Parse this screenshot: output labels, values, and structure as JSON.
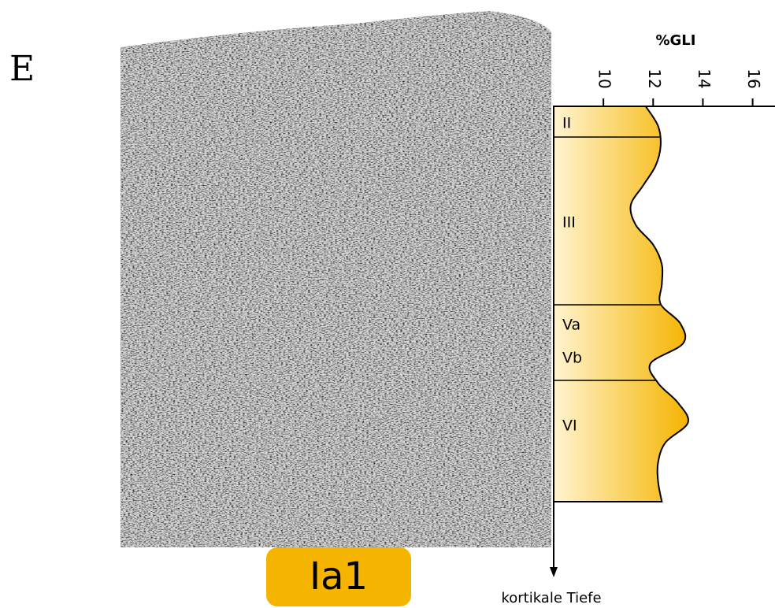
{
  "panel_label": "E",
  "chart_data": {
    "type": "area",
    "x_label": "%GLI",
    "y_label": "kortikale Tiefe",
    "categories": [
      null,
      null,
      null,
      null,
      null,
      null,
      null,
      null,
      null,
      null,
      null,
      null,
      null,
      null,
      null,
      null,
      null,
      null,
      null,
      null,
      null
    ],
    "values": [
      11.7,
      12.2,
      12.3,
      12.1,
      11.6,
      11.1,
      11.3,
      12.0,
      12.35,
      12.35,
      12.3,
      13.1,
      13.2,
      11.9,
      12.2,
      13.0,
      13.4,
      12.5,
      12.2,
      12.2,
      12.35
    ],
    "xlim": [
      8,
      16.9
    ],
    "xticks": [
      10,
      12,
      14,
      16
    ],
    "color": "#f5b400"
  },
  "layers": [
    "II",
    "III",
    "Va",
    "Vb",
    "VI"
  ],
  "area_label": "Ia1"
}
